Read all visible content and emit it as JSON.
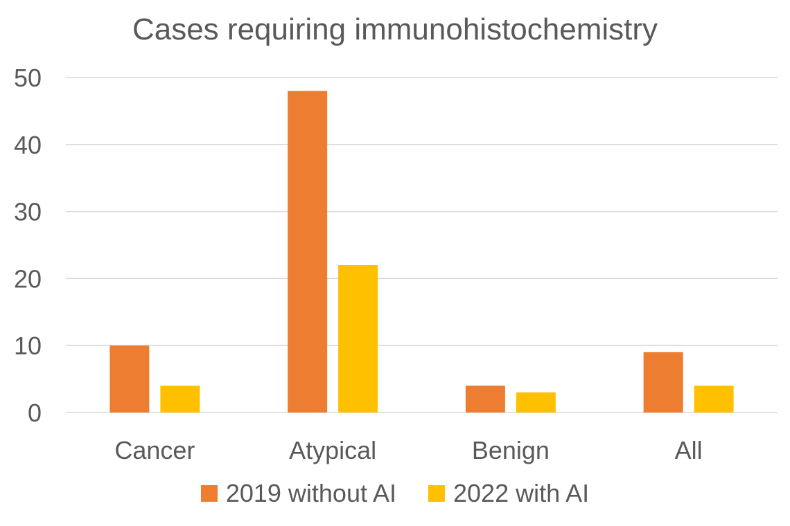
{
  "chart_data": {
    "type": "bar",
    "title": "Cases requiring immunohistochemistry",
    "categories": [
      "Cancer",
      "Atypical",
      "Benign",
      "All"
    ],
    "series": [
      {
        "name": "2019 without AI",
        "values": [
          10,
          48,
          4,
          9
        ],
        "color": "#ED7D31"
      },
      {
        "name": "2022 with AI",
        "values": [
          4,
          22,
          3,
          4
        ],
        "color": "#FFC000"
      }
    ],
    "y_ticks": [
      "0",
      "10",
      "20",
      "30",
      "40",
      "50"
    ],
    "ylim": [
      0,
      50
    ],
    "grid": true,
    "grid_color": "#D9D9D9",
    "legend_position": "bottom"
  }
}
